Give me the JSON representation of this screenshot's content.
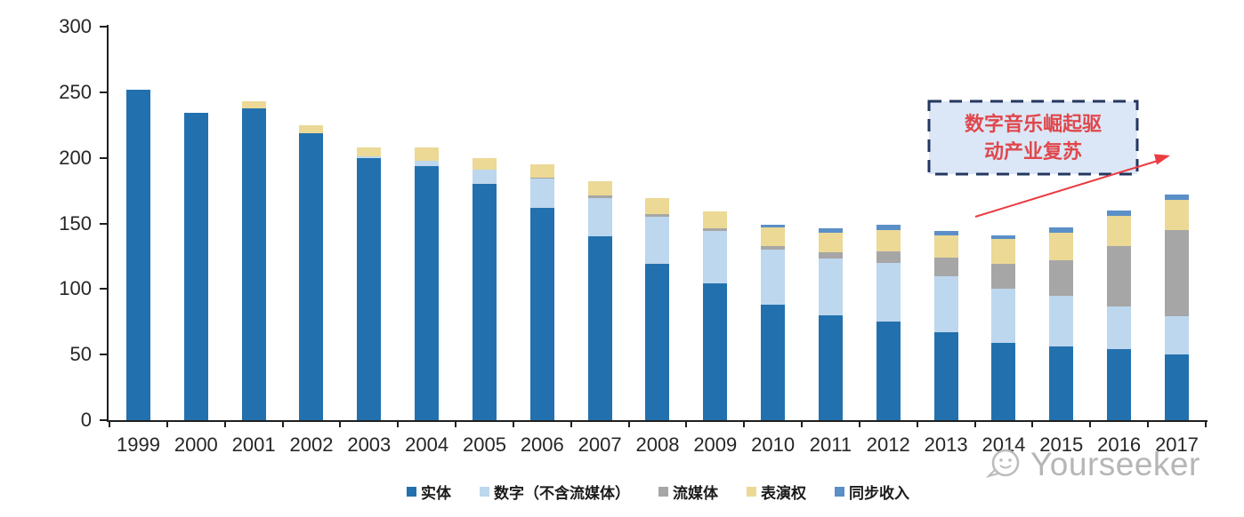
{
  "chart_data": {
    "type": "bar",
    "variant": "stacked-vertical",
    "title": "",
    "xlabel": "",
    "ylabel": "",
    "categories": [
      "1999",
      "2000",
      "2001",
      "2002",
      "2003",
      "2004",
      "2005",
      "2006",
      "2007",
      "2008",
      "2009",
      "2010",
      "2011",
      "2012",
      "2013",
      "2014",
      "2015",
      "2016",
      "2017"
    ],
    "series": [
      {
        "name": "实体",
        "color": "#2271AE",
        "values": [
          252,
          234,
          238,
          219,
          200,
          194,
          180,
          162,
          140,
          119,
          104,
          88,
          80,
          75,
          67,
          59,
          56,
          54,
          50
        ]
      },
      {
        "name": "数字（不含流媒体）",
        "color": "#BDD7EE",
        "values": [
          0,
          0,
          0,
          0,
          1,
          4,
          11,
          22,
          29,
          36,
          40,
          42,
          43,
          45,
          43,
          41,
          39,
          33,
          29
        ]
      },
      {
        "name": "流媒体",
        "color": "#A6A6A6",
        "values": [
          0,
          0,
          0,
          0,
          0,
          0,
          0,
          1,
          2,
          2,
          2,
          3,
          5,
          9,
          14,
          19,
          27,
          46,
          66
        ]
      },
      {
        "name": "表演权",
        "color": "#EBD995",
        "values": [
          0,
          0,
          5,
          6,
          7,
          10,
          9,
          10,
          11,
          12,
          13,
          14,
          15,
          16,
          17,
          19,
          21,
          23,
          23
        ]
      },
      {
        "name": "同步收入",
        "color": "#5B8FC7",
        "values": [
          0,
          0,
          0,
          0,
          0,
          0,
          0,
          0,
          0,
          0,
          0,
          2,
          3,
          4,
          3,
          3,
          4,
          4,
          4
        ]
      }
    ],
    "ylim": [
      0,
      300
    ],
    "yticks": [
      "0",
      "50",
      "100",
      "150",
      "200",
      "250",
      "300"
    ],
    "grid": false,
    "legend_position": "bottom"
  },
  "annotation": {
    "line1": "数字音乐崛起驱",
    "line2": "动产业复苏",
    "text_color": "#e0474c",
    "box_fill": "#dbe7f6",
    "box_border_color": "#243760",
    "arrow_color": "#ec3b41"
  },
  "watermark": {
    "text": "Yourseeker",
    "icon": "chat-face-logo-icon",
    "color": "#b6b6b6"
  }
}
